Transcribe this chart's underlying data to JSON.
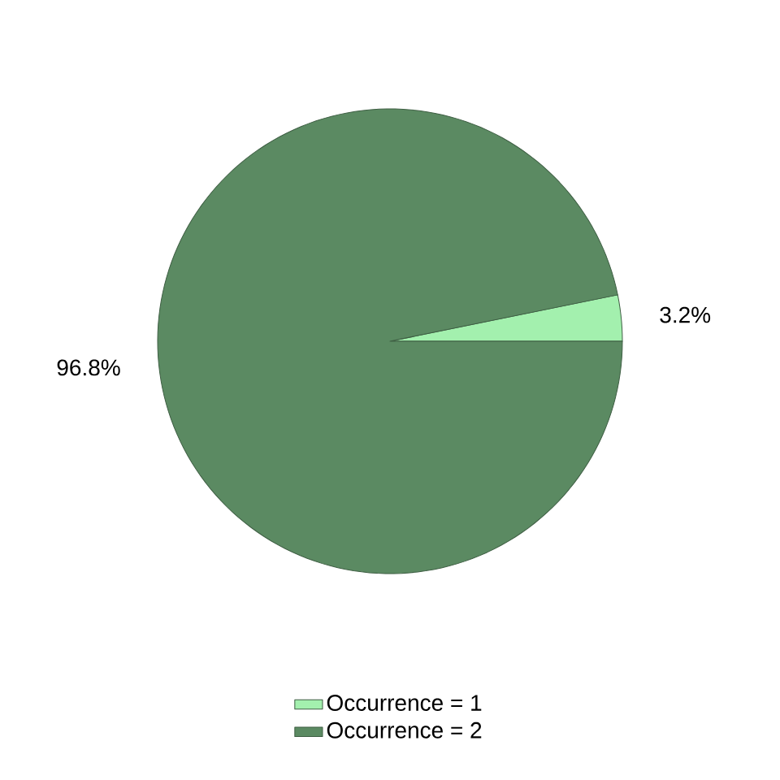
{
  "chart_data": {
    "type": "pie",
    "categories": [
      "Occurrence = 1",
      "Occurrence = 2"
    ],
    "values": [
      3.2,
      96.8
    ],
    "colors": [
      "#a3f0ae",
      "#5b8a62"
    ],
    "value_labels": [
      "3.2%",
      "96.8%"
    ],
    "legend": "bottom"
  }
}
